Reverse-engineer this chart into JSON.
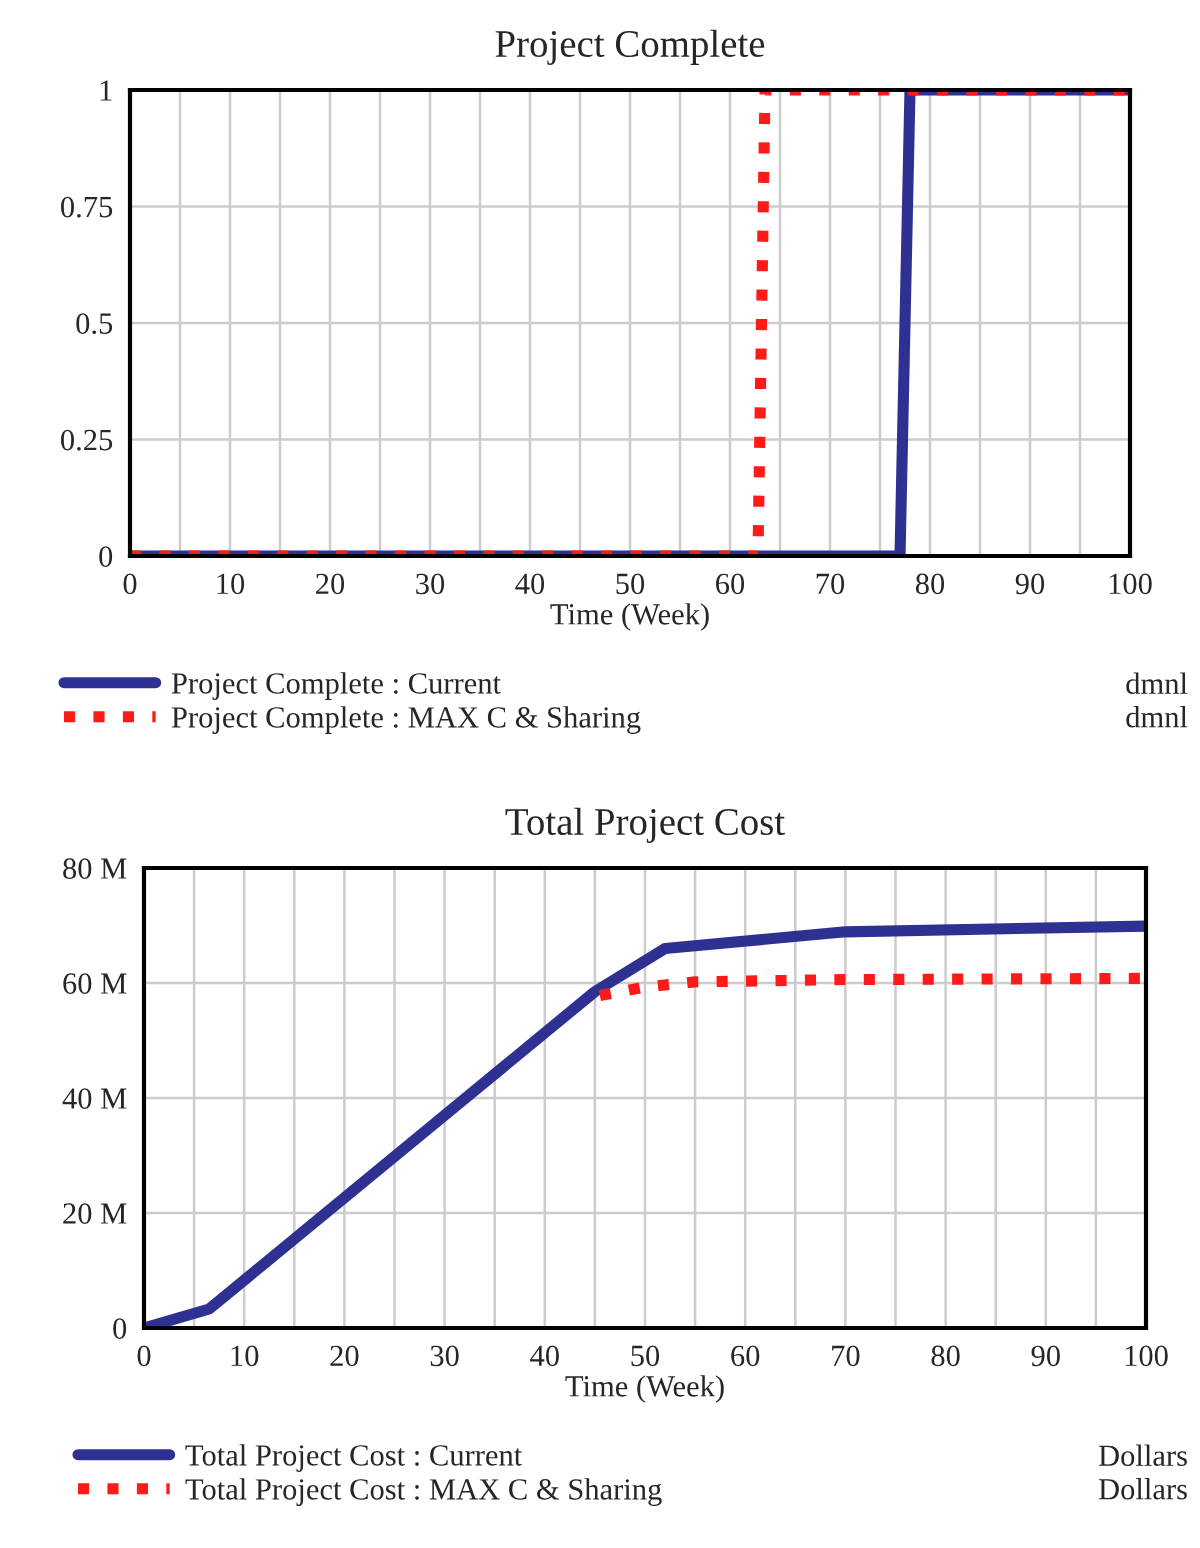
{
  "chart_data": [
    {
      "type": "line",
      "title": "Project Complete",
      "xlabel": "Time (Week)",
      "series": [
        {
          "name": "Project Complete : Current",
          "color": "#2e3192",
          "line_style": "solid",
          "x": [
            0,
            77,
            78,
            100
          ],
          "values": [
            0,
            0,
            1,
            1
          ]
        },
        {
          "name": "Project Complete : MAX C & Sharing",
          "color": "#ff1a1a",
          "line_style": "dotted",
          "x": [
            0,
            62.8,
            63.5,
            100
          ],
          "values": [
            0,
            0,
            1,
            1
          ]
        }
      ],
      "annotations": [
        "dmnl",
        "dmnl"
      ],
      "xlim": [
        0,
        100
      ],
      "ylim": [
        0,
        1
      ],
      "xticks": [
        0,
        {
          "value": 5,
          "label": null
        },
        10,
        {
          "value": 15,
          "label": null
        },
        20,
        {
          "value": 25,
          "label": null
        },
        30,
        {
          "value": 35,
          "label": null
        },
        40,
        {
          "value": 45,
          "label": null
        },
        50,
        {
          "value": 55,
          "label": null
        },
        60,
        {
          "value": 65,
          "label": null
        },
        70,
        {
          "value": 75,
          "label": null
        },
        80,
        {
          "value": 85,
          "label": null
        },
        90,
        {
          "value": 95,
          "label": null
        },
        100
      ],
      "yticks": [
        0,
        0.25,
        0.5,
        0.75,
        1
      ],
      "grid": true,
      "legend": "bottom"
    },
    {
      "type": "line",
      "title": "Total Project Cost",
      "xlabel": "Time (Week)",
      "series": [
        {
          "name": "Total Project Cost : Current",
          "color": "#2e3192",
          "line_style": "solid",
          "x": [
            0,
            6.5,
            45,
            52,
            70,
            100
          ],
          "values": [
            0,
            3300000,
            58500000,
            66000000,
            68900000,
            69900000
          ]
        },
        {
          "name": "Total Project Cost : MAX C & Sharing",
          "color": "#ff1a1a",
          "line_style": "dotted",
          "x": [
            45.5,
            50,
            55,
            70,
            100
          ],
          "values": [
            57800000,
            59300000,
            60200000,
            60600000,
            60800000
          ]
        }
      ],
      "annotations": [
        "Dollars",
        "Dollars"
      ],
      "xlim": [
        0,
        100
      ],
      "ylim": [
        0,
        80000000
      ],
      "xticks": [
        0,
        {
          "value": 5,
          "label": null
        },
        10,
        {
          "value": 15,
          "label": null
        },
        20,
        {
          "value": 25,
          "label": null
        },
        30,
        {
          "value": 35,
          "label": null
        },
        40,
        {
          "value": 45,
          "label": null
        },
        50,
        {
          "value": 55,
          "label": null
        },
        60,
        {
          "value": 65,
          "label": null
        },
        70,
        {
          "value": 75,
          "label": null
        },
        80,
        {
          "value": 85,
          "label": null
        },
        90,
        {
          "value": 95,
          "label": null
        },
        100
      ],
      "yticks": [
        0,
        {
          "value": 20000000,
          "label": "20 M"
        },
        {
          "value": 40000000,
          "label": "40 M"
        },
        {
          "value": 60000000,
          "label": "60 M"
        },
        {
          "value": 80000000,
          "label": "80 M"
        }
      ],
      "grid": true,
      "legend": "bottom"
    }
  ]
}
